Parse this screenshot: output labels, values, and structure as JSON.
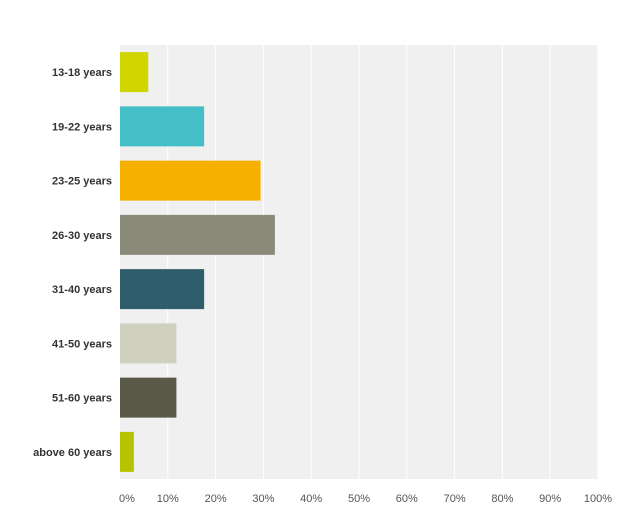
{
  "chart_data": {
    "type": "bar",
    "orientation": "horizontal",
    "categories": [
      "13-18 years",
      "19-22 years",
      "23-25 years",
      "26-30 years",
      "31-40 years",
      "41-50 years",
      "51-60 years",
      "above 60 years"
    ],
    "values": [
      5.9,
      17.6,
      29.4,
      32.4,
      17.6,
      11.8,
      11.8,
      2.9
    ],
    "colors": [
      "#d1d600",
      "#44bfc5",
      "#f5b000",
      "#8a8a78",
      "#2f5d6b",
      "#d0d0bf",
      "#5b5a48",
      "#b7c300"
    ],
    "xlim": [
      0,
      100
    ],
    "x_ticks": [
      "0%",
      "10%",
      "20%",
      "30%",
      "40%",
      "50%",
      "60%",
      "70%",
      "80%",
      "90%",
      "100%"
    ],
    "grid": true,
    "legend": "none",
    "title": "",
    "xlabel": "",
    "ylabel": "",
    "plot_background": "#f0f0f0",
    "gridline_color": "#ffffff"
  }
}
